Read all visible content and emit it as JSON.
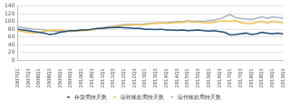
{
  "chart_data": {
    "type": "line",
    "categories": [
      "2007Q1",
      null,
      "2007Q3",
      null,
      "2008Q1",
      null,
      "2008Q3",
      null,
      "2009Q1",
      null,
      "2009Q3",
      null,
      "2010Q1",
      null,
      "2010Q3",
      null,
      "2011Q1",
      null,
      "2011Q3",
      null,
      "2012Q1",
      null,
      "2012Q3",
      null,
      "2013Q1",
      null,
      "2013Q3",
      null,
      "2014Q1",
      null,
      "2014Q3",
      null,
      "2015Q1",
      null,
      "2015Q3",
      null,
      "2016Q1",
      null,
      "2016Q3",
      null,
      "2017Q1",
      null,
      "2017Q3",
      null,
      "2018Q1",
      null,
      "2018Q3",
      null,
      "2019Q1",
      null,
      "2019Q3"
    ],
    "series": [
      {
        "name": "存货周转天数",
        "color": "#1f4e79",
        "values": [
          80,
          78,
          76,
          74,
          72,
          70,
          66,
          68,
          72,
          74,
          76,
          76,
          78,
          78,
          80,
          82,
          82,
          84,
          84,
          85,
          84,
          83,
          82,
          82,
          80,
          80,
          79,
          80,
          78,
          78,
          77,
          78,
          76,
          77,
          78,
          76,
          75,
          76,
          74,
          72,
          65,
          66,
          68,
          70,
          66,
          68,
          72,
          70,
          68,
          70,
          68
        ]
      },
      {
        "name": "应收账款周转天数",
        "color": "#f2c14e",
        "values": [
          76,
          74,
          72,
          70,
          72,
          74,
          76,
          78,
          78,
          76,
          74,
          75,
          76,
          77,
          78,
          80,
          82,
          84,
          86,
          88,
          90,
          90,
          92,
          91,
          92,
          94,
          95,
          96,
          95,
          96,
          98,
          97,
          100,
          98,
          99,
          97,
          96,
          98,
          100,
          102,
          100,
          103,
          97,
          95,
          94,
          98,
          100,
          96,
          100,
          98,
          96
        ]
      },
      {
        "name": "应付账款周转天数",
        "color": "#a9b4c2",
        "values": [
          86,
          84,
          82,
          80,
          80,
          78,
          76,
          75,
          74,
          75,
          76,
          76,
          77,
          78,
          79,
          80,
          84,
          86,
          88,
          90,
          92,
          92,
          93,
          92,
          94,
          95,
          96,
          96,
          97,
          98,
          100,
          99,
          102,
          100,
          101,
          100,
          102,
          104,
          106,
          112,
          118,
          110,
          108,
          106,
          105,
          108,
          112,
          108,
          112,
          110,
          108
        ]
      }
    ],
    "ylim": [
      0,
      140
    ],
    "yticks": [
      0,
      20,
      40,
      60,
      80,
      100,
      120,
      140
    ],
    "grid": true,
    "legend": "bottom"
  }
}
